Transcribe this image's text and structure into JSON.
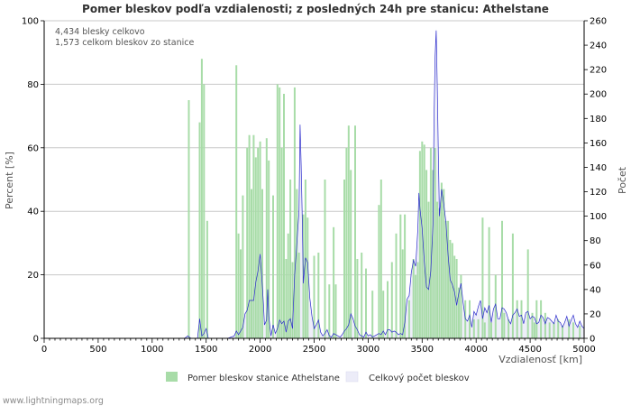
{
  "chart_data": {
    "type": "bar+line",
    "title": "Pomer bleskov podľa vzdialenosti; z posledných 24h pre stanicu: Athelstane",
    "xlabel": "Vzdialenosť   [km]",
    "ylabel_left": "Percent   [%]",
    "ylabel_right": "Počet",
    "xlim": [
      0,
      5000
    ],
    "ylim_left": [
      0,
      100
    ],
    "ylim_right": [
      0,
      260
    ],
    "x_ticks": [
      "0",
      "500",
      "1000",
      "1500",
      "2000",
      "2500",
      "3000",
      "3500",
      "4000",
      "4500",
      "5000"
    ],
    "y_left_ticks": [
      "0",
      "20",
      "40",
      "60",
      "80",
      "100"
    ],
    "y_right_ticks": [
      "0",
      "20",
      "40",
      "60",
      "80",
      "100",
      "120",
      "140",
      "160",
      "180",
      "200",
      "220",
      "240",
      "260"
    ],
    "grid": true,
    "info_lines": [
      "4,434 blesky celkovo",
      "1,573 celkom bleskov zo stanice"
    ],
    "series": [
      {
        "name": "Pomer bleskov stanice Athelstane",
        "kind": "bar",
        "axis": "left",
        "color": "#a8dca8",
        "bar_width_km": 16,
        "points": [
          [
            1340,
            75
          ],
          [
            1440,
            68
          ],
          [
            1460,
            88
          ],
          [
            1480,
            80
          ],
          [
            1510,
            37
          ],
          [
            1780,
            86
          ],
          [
            1800,
            33
          ],
          [
            1820,
            28
          ],
          [
            1840,
            45
          ],
          [
            1880,
            60
          ],
          [
            1900,
            64
          ],
          [
            1920,
            47
          ],
          [
            1940,
            64
          ],
          [
            1960,
            57
          ],
          [
            1980,
            60
          ],
          [
            2000,
            62
          ],
          [
            2020,
            47
          ],
          [
            2060,
            63
          ],
          [
            2080,
            56
          ],
          [
            2120,
            45
          ],
          [
            2160,
            80
          ],
          [
            2180,
            79
          ],
          [
            2200,
            60
          ],
          [
            2220,
            77
          ],
          [
            2240,
            25
          ],
          [
            2260,
            33
          ],
          [
            2280,
            50
          ],
          [
            2300,
            24
          ],
          [
            2320,
            79
          ],
          [
            2340,
            47
          ],
          [
            2360,
            27
          ],
          [
            2400,
            39
          ],
          [
            2420,
            50
          ],
          [
            2440,
            38
          ],
          [
            2500,
            26
          ],
          [
            2540,
            27
          ],
          [
            2600,
            50
          ],
          [
            2640,
            17
          ],
          [
            2680,
            35
          ],
          [
            2700,
            17
          ],
          [
            2780,
            50
          ],
          [
            2800,
            60
          ],
          [
            2820,
            67
          ],
          [
            2840,
            53
          ],
          [
            2880,
            67
          ],
          [
            2900,
            25
          ],
          [
            2940,
            27
          ],
          [
            2980,
            22
          ],
          [
            3040,
            15
          ],
          [
            3100,
            42
          ],
          [
            3120,
            50
          ],
          [
            3140,
            15
          ],
          [
            3180,
            18
          ],
          [
            3220,
            24
          ],
          [
            3260,
            33
          ],
          [
            3300,
            39
          ],
          [
            3320,
            28
          ],
          [
            3340,
            39
          ],
          [
            3380,
            12
          ],
          [
            3420,
            25
          ],
          [
            3440,
            20
          ],
          [
            3460,
            24
          ],
          [
            3480,
            59
          ],
          [
            3500,
            62
          ],
          [
            3520,
            61
          ],
          [
            3540,
            53
          ],
          [
            3560,
            43
          ],
          [
            3580,
            60
          ],
          [
            3600,
            53
          ],
          [
            3620,
            60
          ],
          [
            3640,
            43
          ],
          [
            3660,
            41
          ],
          [
            3680,
            49
          ],
          [
            3700,
            47
          ],
          [
            3720,
            37
          ],
          [
            3740,
            37
          ],
          [
            3760,
            31
          ],
          [
            3780,
            30
          ],
          [
            3800,
            26
          ],
          [
            3820,
            25
          ],
          [
            3840,
            16
          ],
          [
            3860,
            20
          ],
          [
            3900,
            12
          ],
          [
            3940,
            12
          ],
          [
            3980,
            6
          ],
          [
            4020,
            6
          ],
          [
            4060,
            38
          ],
          [
            4080,
            5
          ],
          [
            4120,
            35
          ],
          [
            4140,
            5
          ],
          [
            4180,
            20
          ],
          [
            4240,
            37
          ],
          [
            4260,
            8
          ],
          [
            4300,
            6
          ],
          [
            4340,
            33
          ],
          [
            4380,
            12
          ],
          [
            4420,
            12
          ],
          [
            4480,
            28
          ],
          [
            4520,
            8
          ],
          [
            4540,
            5
          ],
          [
            4560,
            12
          ],
          [
            4600,
            12
          ],
          [
            4640,
            8
          ],
          [
            4680,
            5
          ],
          [
            4720,
            5
          ],
          [
            4760,
            6
          ],
          [
            4800,
            4
          ],
          [
            4860,
            6
          ],
          [
            4900,
            5
          ],
          [
            4960,
            4
          ]
        ]
      },
      {
        "name": "Celkový počet bleskov",
        "kind": "line",
        "axis": "right",
        "color": "#2a2acc",
        "fill": "#ececf8",
        "points": [
          [
            0,
            0
          ],
          [
            1300,
            0
          ],
          [
            1330,
            2
          ],
          [
            1360,
            0
          ],
          [
            1420,
            0
          ],
          [
            1440,
            16
          ],
          [
            1460,
            2
          ],
          [
            1480,
            4
          ],
          [
            1500,
            8
          ],
          [
            1520,
            0
          ],
          [
            1700,
            0
          ],
          [
            1760,
            2
          ],
          [
            1780,
            6
          ],
          [
            1800,
            3
          ],
          [
            1820,
            6
          ],
          [
            1840,
            9
          ],
          [
            1860,
            20
          ],
          [
            1880,
            23
          ],
          [
            1900,
            31
          ],
          [
            1920,
            31
          ],
          [
            1940,
            31
          ],
          [
            1960,
            46
          ],
          [
            1980,
            55
          ],
          [
            2000,
            69
          ],
          [
            2010,
            57
          ],
          [
            2020,
            43
          ],
          [
            2030,
            29
          ],
          [
            2040,
            11
          ],
          [
            2060,
            15
          ],
          [
            2070,
            40
          ],
          [
            2080,
            18
          ],
          [
            2100,
            2
          ],
          [
            2120,
            11
          ],
          [
            2140,
            4
          ],
          [
            2160,
            8
          ],
          [
            2180,
            15
          ],
          [
            2200,
            12
          ],
          [
            2220,
            14
          ],
          [
            2240,
            5
          ],
          [
            2260,
            14
          ],
          [
            2280,
            16
          ],
          [
            2300,
            8
          ],
          [
            2320,
            52
          ],
          [
            2340,
            78
          ],
          [
            2360,
            104
          ],
          [
            2370,
            175
          ],
          [
            2380,
            142
          ],
          [
            2390,
            99
          ],
          [
            2400,
            45
          ],
          [
            2420,
            66
          ],
          [
            2440,
            62
          ],
          [
            2460,
            33
          ],
          [
            2480,
            18
          ],
          [
            2500,
            8
          ],
          [
            2520,
            11
          ],
          [
            2540,
            15
          ],
          [
            2560,
            5
          ],
          [
            2580,
            2
          ],
          [
            2600,
            4
          ],
          [
            2620,
            7
          ],
          [
            2640,
            2
          ],
          [
            2660,
            1
          ],
          [
            2680,
            4
          ],
          [
            2700,
            3
          ],
          [
            2720,
            2
          ],
          [
            2740,
            1
          ],
          [
            2760,
            3
          ],
          [
            2780,
            6
          ],
          [
            2800,
            8
          ],
          [
            2820,
            11
          ],
          [
            2840,
            20
          ],
          [
            2860,
            16
          ],
          [
            2880,
            10
          ],
          [
            2900,
            7
          ],
          [
            2920,
            3
          ],
          [
            2940,
            2
          ],
          [
            2960,
            1
          ],
          [
            2980,
            5
          ],
          [
            3000,
            2
          ],
          [
            3020,
            3
          ],
          [
            3040,
            1
          ],
          [
            3060,
            2
          ],
          [
            3080,
            3
          ],
          [
            3100,
            4
          ],
          [
            3120,
            3
          ],
          [
            3140,
            6
          ],
          [
            3160,
            3
          ],
          [
            3180,
            7
          ],
          [
            3200,
            7
          ],
          [
            3220,
            5
          ],
          [
            3240,
            6
          ],
          [
            3260,
            5
          ],
          [
            3280,
            3
          ],
          [
            3300,
            4
          ],
          [
            3320,
            3
          ],
          [
            3340,
            13
          ],
          [
            3360,
            32
          ],
          [
            3380,
            35
          ],
          [
            3400,
            54
          ],
          [
            3420,
            64
          ],
          [
            3440,
            59
          ],
          [
            3460,
            89
          ],
          [
            3470,
            119
          ],
          [
            3480,
            106
          ],
          [
            3500,
            90
          ],
          [
            3520,
            63
          ],
          [
            3540,
            42
          ],
          [
            3560,
            40
          ],
          [
            3580,
            55
          ],
          [
            3600,
            93
          ],
          [
            3610,
            180
          ],
          [
            3620,
            231
          ],
          [
            3630,
            252
          ],
          [
            3640,
            206
          ],
          [
            3650,
            150
          ],
          [
            3660,
            100
          ],
          [
            3680,
            122
          ],
          [
            3700,
            110
          ],
          [
            3720,
            95
          ],
          [
            3740,
            68
          ],
          [
            3760,
            48
          ],
          [
            3780,
            44
          ],
          [
            3800,
            38
          ],
          [
            3820,
            27
          ],
          [
            3840,
            37
          ],
          [
            3860,
            45
          ],
          [
            3880,
            29
          ],
          [
            3900,
            16
          ],
          [
            3920,
            14
          ],
          [
            3940,
            19
          ],
          [
            3960,
            9
          ],
          [
            3980,
            22
          ],
          [
            4000,
            19
          ],
          [
            4020,
            26
          ],
          [
            4040,
            31
          ],
          [
            4060,
            16
          ],
          [
            4080,
            25
          ],
          [
            4100,
            21
          ],
          [
            4120,
            27
          ],
          [
            4140,
            13
          ],
          [
            4160,
            24
          ],
          [
            4180,
            28
          ],
          [
            4200,
            16
          ],
          [
            4220,
            16
          ],
          [
            4240,
            25
          ],
          [
            4260,
            24
          ],
          [
            4280,
            21
          ],
          [
            4300,
            15
          ],
          [
            4320,
            12
          ],
          [
            4340,
            19
          ],
          [
            4360,
            21
          ],
          [
            4380,
            24
          ],
          [
            4400,
            18
          ],
          [
            4420,
            19
          ],
          [
            4440,
            12
          ],
          [
            4460,
            21
          ],
          [
            4480,
            22
          ],
          [
            4500,
            16
          ],
          [
            4520,
            18
          ],
          [
            4540,
            17
          ],
          [
            4560,
            12
          ],
          [
            4580,
            13
          ],
          [
            4600,
            19
          ],
          [
            4620,
            17
          ],
          [
            4640,
            12
          ],
          [
            4660,
            17
          ],
          [
            4680,
            16
          ],
          [
            4700,
            14
          ],
          [
            4720,
            12
          ],
          [
            4740,
            19
          ],
          [
            4760,
            14
          ],
          [
            4780,
            13
          ],
          [
            4800,
            9
          ],
          [
            4820,
            13
          ],
          [
            4840,
            18
          ],
          [
            4860,
            10
          ],
          [
            4880,
            15
          ],
          [
            4900,
            19
          ],
          [
            4920,
            12
          ],
          [
            4940,
            9
          ],
          [
            4960,
            14
          ],
          [
            4980,
            10
          ],
          [
            5000,
            8
          ]
        ]
      }
    ],
    "legend": [
      "Pomer bleskov stanice Athelstane",
      "Celkový počet bleskov"
    ]
  },
  "footer": "www.lightningmaps.org"
}
